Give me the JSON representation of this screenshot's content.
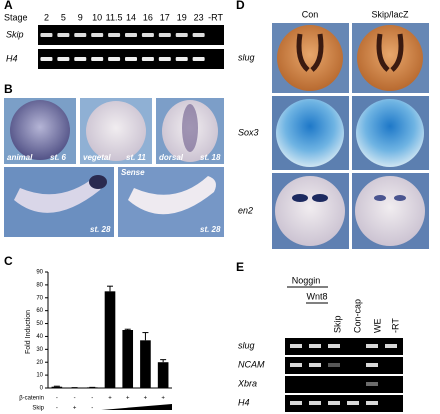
{
  "panels": {
    "a": {
      "label": "A",
      "stage_title": "Stage",
      "stages": [
        "2",
        "5",
        "9",
        "10",
        "11.5",
        "14",
        "16",
        "17",
        "19",
        "23",
        "-RT"
      ],
      "rows": [
        "Skip",
        "H4"
      ]
    },
    "b": {
      "label": "B",
      "captions": [
        "animal",
        "st. 6",
        "vegetal",
        "st. 11",
        "dorsal",
        "st. 18",
        "st. 28",
        "Sense",
        "st. 28"
      ]
    },
    "c": {
      "label": "C"
    },
    "d": {
      "label": "D",
      "columns": [
        "Con",
        "Skip/lacZ"
      ],
      "rows": [
        "slug",
        "Sox3",
        "en2"
      ]
    },
    "e": {
      "label": "E",
      "headers": [
        "Noggin",
        "Wnt8",
        "Skip",
        "Con-cap",
        "WE",
        "-RT"
      ],
      "rows": [
        "slug",
        "NCAM",
        "Xbra",
        "H4"
      ]
    }
  },
  "chart_data": {
    "type": "bar",
    "y_label": "Fold Induction",
    "values": [
      1,
      0.3,
      0.5,
      75,
      45,
      37,
      20
    ],
    "errors": [
      0.4,
      0,
      0,
      4,
      0.6,
      6,
      2
    ],
    "color": "#000000",
    "ylim": [
      0,
      90
    ],
    "yticks": [
      0,
      10,
      20,
      30,
      40,
      50,
      60,
      70,
      80,
      90
    ],
    "row_labels": [
      "β-catenin",
      "Skip"
    ],
    "beta_catenin": [
      "-",
      "-",
      "-",
      "+",
      "+",
      "+",
      "+"
    ],
    "skip": [
      "-",
      "+",
      "-"
    ]
  }
}
